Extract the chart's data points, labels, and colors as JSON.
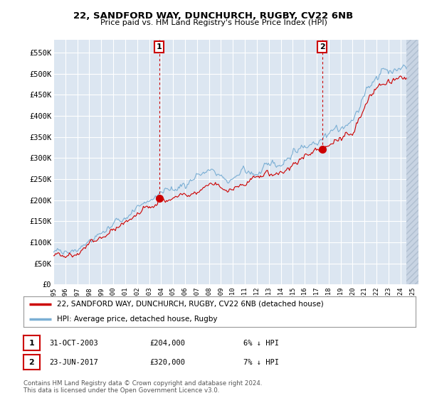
{
  "title": "22, SANDFORD WAY, DUNCHURCH, RUGBY, CV22 6NB",
  "subtitle": "Price paid vs. HM Land Registry's House Price Index (HPI)",
  "ylabel_ticks": [
    "£0",
    "£50K",
    "£100K",
    "£150K",
    "£200K",
    "£250K",
    "£300K",
    "£350K",
    "£400K",
    "£450K",
    "£500K",
    "£550K"
  ],
  "ytick_vals": [
    0,
    50000,
    100000,
    150000,
    200000,
    250000,
    300000,
    350000,
    400000,
    450000,
    500000,
    550000
  ],
  "ylim": [
    0,
    580000
  ],
  "legend_line1": "22, SANDFORD WAY, DUNCHURCH, RUGBY, CV22 6NB (detached house)",
  "legend_line2": "HPI: Average price, detached house, Rugby",
  "transaction1_date": "31-OCT-2003",
  "transaction1_price": "£204,000",
  "transaction1_hpi": "6% ↓ HPI",
  "transaction2_date": "23-JUN-2017",
  "transaction2_price": "£320,000",
  "transaction2_hpi": "7% ↓ HPI",
  "footer": "Contains HM Land Registry data © Crown copyright and database right 2024.\nThis data is licensed under the Open Government Licence v3.0.",
  "line_color_house": "#cc0000",
  "line_color_hpi": "#7bafd4",
  "background_chart": "#dce6f1",
  "background_fig": "#ffffff",
  "marker_color": "#cc0000",
  "grid_color": "#ffffff",
  "tx1_x": 2003.833,
  "tx1_y": 204000,
  "tx2_x": 2017.458,
  "tx2_y": 320000,
  "xlim_left": 1995.0,
  "xlim_right": 2025.5
}
